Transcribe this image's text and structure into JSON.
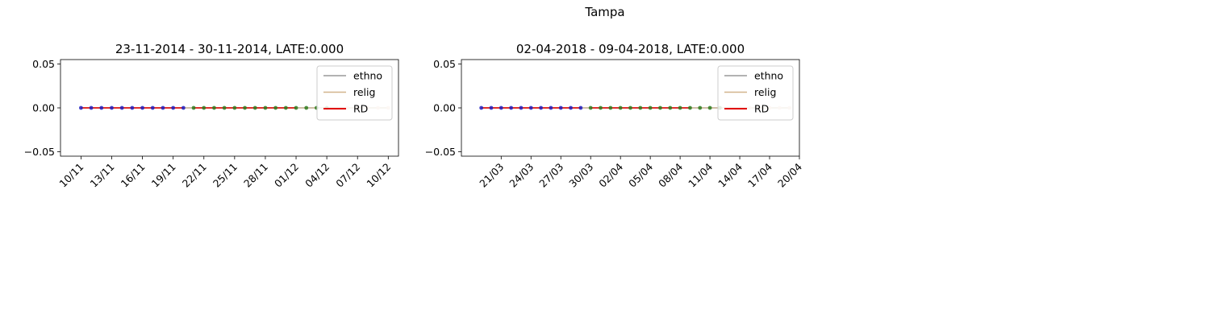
{
  "suptitle": "Tampa",
  "chart_data": [
    {
      "type": "line",
      "title": "23-11-2014 - 30-11-2014, LATE:0.000",
      "xlabel": "",
      "ylabel": "",
      "ylim": [
        -0.055,
        0.055
      ],
      "yticks": [
        "0.05",
        "0.00",
        "−0.05"
      ],
      "ytick_values": [
        0.05,
        0.0,
        -0.05
      ],
      "xlim": [
        "2014-11-08",
        "2014-12-11"
      ],
      "xticks": [
        {
          "date": "2014-11-10",
          "label": "10/11"
        },
        {
          "date": "2014-11-13",
          "label": "13/11"
        },
        {
          "date": "2014-11-16",
          "label": "16/11"
        },
        {
          "date": "2014-11-19",
          "label": "19/11"
        },
        {
          "date": "2014-11-22",
          "label": "22/11"
        },
        {
          "date": "2014-11-25",
          "label": "25/11"
        },
        {
          "date": "2014-11-28",
          "label": "28/11"
        },
        {
          "date": "2014-12-01",
          "label": "01/12"
        },
        {
          "date": "2014-12-04",
          "label": "04/12"
        },
        {
          "date": "2014-12-07",
          "label": "07/12"
        },
        {
          "date": "2014-12-10",
          "label": "10/12"
        }
      ],
      "legend": {
        "position": "upper right",
        "entries": [
          "ethno",
          "relig",
          "RD"
        ]
      },
      "series": [
        {
          "name": "ethno",
          "color": "#999999",
          "x": [
            "2014-11-10",
            "2014-11-11",
            "2014-11-12",
            "2014-11-13",
            "2014-11-14",
            "2014-11-15",
            "2014-11-16",
            "2014-11-17",
            "2014-11-18",
            "2014-11-19",
            "2014-11-20",
            "2014-11-21",
            "2014-11-22",
            "2014-11-23",
            "2014-11-24",
            "2014-11-25",
            "2014-11-26",
            "2014-11-27",
            "2014-11-28",
            "2014-11-29",
            "2014-11-30",
            "2014-12-01",
            "2014-12-02",
            "2014-12-03",
            "2014-12-04",
            "2014-12-05",
            "2014-12-06",
            "2014-12-07",
            "2014-12-08",
            "2014-12-09",
            "2014-12-10"
          ],
          "values": [
            0,
            0,
            0,
            0,
            0,
            0,
            0,
            0,
            0,
            0,
            0,
            0,
            0,
            0,
            0,
            0,
            0,
            0,
            0,
            0,
            0,
            0,
            0,
            0,
            0,
            0,
            0,
            0,
            0,
            0,
            0
          ]
        },
        {
          "name": "relig",
          "color": "#d2b48c",
          "x": [
            "2014-11-10",
            "2014-11-11",
            "2014-11-12",
            "2014-11-13",
            "2014-11-14",
            "2014-11-15",
            "2014-11-16",
            "2014-11-17",
            "2014-11-18",
            "2014-11-19",
            "2014-11-20",
            "2014-11-21",
            "2014-11-22",
            "2014-11-23",
            "2014-11-24",
            "2014-11-25",
            "2014-11-26",
            "2014-11-27",
            "2014-11-28",
            "2014-11-29",
            "2014-11-30",
            "2014-12-01",
            "2014-12-02",
            "2014-12-03",
            "2014-12-04",
            "2014-12-05",
            "2014-12-06",
            "2014-12-07",
            "2014-12-08",
            "2014-12-09",
            "2014-12-10"
          ],
          "values": [
            0,
            0,
            0,
            0,
            0,
            0,
            0,
            0,
            0,
            0,
            0,
            0,
            0,
            0,
            0,
            0,
            0,
            0,
            0,
            0,
            0,
            0,
            0,
            0,
            0,
            0,
            0,
            0,
            0,
            0,
            0
          ]
        },
        {
          "name": "RD",
          "color": "#e00000",
          "x": [
            "2014-11-10",
            "2014-11-20",
            "2014-11-21",
            "2014-12-01"
          ],
          "values": [
            0,
            0,
            0,
            0
          ]
        }
      ],
      "markers": [
        {
          "color": "#1f1fbf",
          "values": [
            0,
            0,
            0,
            0,
            0,
            0,
            0,
            0,
            0,
            0,
            0
          ],
          "x": [
            "2014-11-10",
            "2014-11-11",
            "2014-11-12",
            "2014-11-13",
            "2014-11-14",
            "2014-11-15",
            "2014-11-16",
            "2014-11-17",
            "2014-11-18",
            "2014-11-19",
            "2014-11-20"
          ]
        },
        {
          "color": "#2e7d1f",
          "values": [
            0,
            0,
            0,
            0,
            0,
            0,
            0,
            0,
            0,
            0,
            0,
            0,
            0,
            0
          ],
          "x": [
            "2014-11-21",
            "2014-11-22",
            "2014-11-23",
            "2014-11-24",
            "2014-11-25",
            "2014-11-26",
            "2014-11-27",
            "2014-11-28",
            "2014-11-29",
            "2014-11-30",
            "2014-12-01",
            "2014-12-02",
            "2014-12-03",
            "2014-12-04"
          ]
        },
        {
          "color": "#f0c8b0",
          "values": [
            0,
            0,
            0,
            0,
            0,
            0
          ],
          "x": [
            "2014-12-05",
            "2014-12-06",
            "2014-12-07",
            "2014-12-08",
            "2014-12-09",
            "2014-12-10"
          ]
        }
      ]
    },
    {
      "type": "line",
      "title": "02-04-2018 - 09-04-2018, LATE:0.000",
      "xlabel": "",
      "ylabel": "",
      "ylim": [
        -0.055,
        0.055
      ],
      "yticks": [
        "0.05",
        "0.00",
        "−0.05"
      ],
      "ytick_values": [
        0.05,
        0.0,
        -0.05
      ],
      "xlim": [
        "2018-03-17",
        "2018-04-20"
      ],
      "xticks": [
        {
          "date": "2018-03-21",
          "label": "21/03"
        },
        {
          "date": "2018-03-24",
          "label": "24/03"
        },
        {
          "date": "2018-03-27",
          "label": "27/03"
        },
        {
          "date": "2018-03-30",
          "label": "30/03"
        },
        {
          "date": "2018-04-02",
          "label": "02/04"
        },
        {
          "date": "2018-04-05",
          "label": "05/04"
        },
        {
          "date": "2018-04-08",
          "label": "08/04"
        },
        {
          "date": "2018-04-11",
          "label": "11/04"
        },
        {
          "date": "2018-04-14",
          "label": "14/04"
        },
        {
          "date": "2018-04-17",
          "label": "17/04"
        },
        {
          "date": "2018-04-20",
          "label": "20/04"
        }
      ],
      "legend": {
        "position": "upper right",
        "entries": [
          "ethno",
          "relig",
          "RD"
        ]
      },
      "series": [
        {
          "name": "ethno",
          "color": "#999999",
          "x": [
            "2018-03-19",
            "2018-03-20",
            "2018-03-21",
            "2018-03-22",
            "2018-03-23",
            "2018-03-24",
            "2018-03-25",
            "2018-03-26",
            "2018-03-27",
            "2018-03-28",
            "2018-03-29",
            "2018-03-30",
            "2018-03-31",
            "2018-04-01",
            "2018-04-02",
            "2018-04-03",
            "2018-04-04",
            "2018-04-05",
            "2018-04-06",
            "2018-04-07",
            "2018-04-08",
            "2018-04-09",
            "2018-04-10",
            "2018-04-11",
            "2018-04-12",
            "2018-04-13",
            "2018-04-14",
            "2018-04-15",
            "2018-04-16",
            "2018-04-17",
            "2018-04-18",
            "2018-04-19"
          ],
          "values": [
            0,
            0,
            0,
            0,
            0,
            0,
            0,
            0,
            0,
            0,
            0,
            0,
            0,
            0,
            0,
            0,
            0,
            0,
            0,
            0,
            0,
            0,
            0,
            0,
            0,
            0,
            0,
            0,
            0,
            0,
            0,
            0
          ]
        },
        {
          "name": "relig",
          "color": "#d2b48c",
          "x": [
            "2018-03-19",
            "2018-03-20",
            "2018-03-21",
            "2018-03-22",
            "2018-03-23",
            "2018-03-24",
            "2018-03-25",
            "2018-03-26",
            "2018-03-27",
            "2018-03-28",
            "2018-03-29",
            "2018-03-30",
            "2018-03-31",
            "2018-04-01",
            "2018-04-02",
            "2018-04-03",
            "2018-04-04",
            "2018-04-05",
            "2018-04-06",
            "2018-04-07",
            "2018-04-08",
            "2018-04-09",
            "2018-04-10",
            "2018-04-11",
            "2018-04-12",
            "2018-04-13",
            "2018-04-14",
            "2018-04-15",
            "2018-04-16",
            "2018-04-17",
            "2018-04-18",
            "2018-04-19"
          ],
          "values": [
            0,
            0,
            0,
            0,
            0,
            0,
            0,
            0,
            0,
            0,
            0,
            0,
            0,
            0,
            0,
            0,
            0,
            0,
            0,
            0,
            0,
            0,
            0,
            0,
            0,
            0,
            0,
            0,
            0,
            0,
            0,
            0
          ]
        },
        {
          "name": "RD",
          "color": "#e00000",
          "x": [
            "2018-03-19",
            "2018-03-29",
            "2018-03-30",
            "2018-04-09"
          ],
          "values": [
            0,
            0,
            0,
            0
          ]
        }
      ],
      "markers": [
        {
          "color": "#1f1fbf",
          "values": [
            0,
            0,
            0,
            0,
            0,
            0,
            0,
            0,
            0,
            0,
            0
          ],
          "x": [
            "2018-03-19",
            "2018-03-20",
            "2018-03-21",
            "2018-03-22",
            "2018-03-23",
            "2018-03-24",
            "2018-03-25",
            "2018-03-26",
            "2018-03-27",
            "2018-03-28",
            "2018-03-29"
          ]
        },
        {
          "color": "#2e7d1f",
          "values": [
            0,
            0,
            0,
            0,
            0,
            0,
            0,
            0,
            0,
            0,
            0,
            0,
            0,
            0
          ],
          "x": [
            "2018-03-30",
            "2018-03-31",
            "2018-04-01",
            "2018-04-02",
            "2018-04-03",
            "2018-04-04",
            "2018-04-05",
            "2018-04-06",
            "2018-04-07",
            "2018-04-08",
            "2018-04-09",
            "2018-04-10",
            "2018-04-11",
            "2018-04-12"
          ]
        },
        {
          "color": "#f0c8b0",
          "values": [
            0,
            0,
            0,
            0,
            0,
            0,
            0
          ],
          "x": [
            "2018-04-13",
            "2018-04-14",
            "2018-04-15",
            "2018-04-16",
            "2018-04-17",
            "2018-04-18",
            "2018-04-19"
          ]
        }
      ]
    }
  ]
}
